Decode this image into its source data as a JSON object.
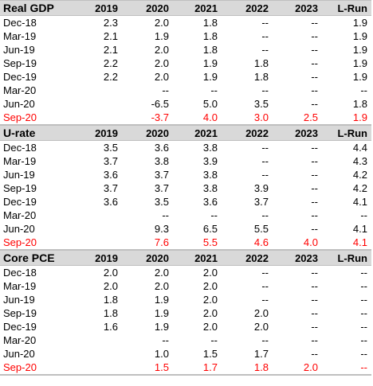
{
  "columns": [
    "2019",
    "2020",
    "2021",
    "2022",
    "2023",
    "L-Run"
  ],
  "sections": [
    {
      "title": "Real GDP",
      "rows": [
        {
          "label": "Dec-18",
          "values": [
            "2.3",
            "2.0",
            "1.8",
            "--",
            "--",
            "1.9"
          ]
        },
        {
          "label": "Mar-19",
          "values": [
            "2.1",
            "1.9",
            "1.8",
            "--",
            "--",
            "1.9"
          ]
        },
        {
          "label": "Jun-19",
          "values": [
            "2.1",
            "2.0",
            "1.8",
            "--",
            "--",
            "1.9"
          ]
        },
        {
          "label": "Sep-19",
          "values": [
            "2.2",
            "2.0",
            "1.9",
            "1.8",
            "--",
            "1.9"
          ]
        },
        {
          "label": "Dec-19",
          "values": [
            "2.2",
            "2.0",
            "1.9",
            "1.8",
            "--",
            "1.9"
          ]
        },
        {
          "label": "Mar-20",
          "values": [
            "",
            "--",
            "--",
            "--",
            "--",
            "--"
          ]
        },
        {
          "label": "Jun-20",
          "values": [
            "",
            "-6.5",
            "5.0",
            "3.5",
            "--",
            "1.8"
          ]
        },
        {
          "label": "Sep-20",
          "values": [
            "",
            "-3.7",
            "4.0",
            "3.0",
            "2.5",
            "1.9"
          ]
        }
      ]
    },
    {
      "title": "U-rate",
      "rows": [
        {
          "label": "Dec-18",
          "values": [
            "3.5",
            "3.6",
            "3.8",
            "--",
            "--",
            "4.4"
          ]
        },
        {
          "label": "Mar-19",
          "values": [
            "3.7",
            "3.8",
            "3.9",
            "--",
            "--",
            "4.3"
          ]
        },
        {
          "label": "Jun-19",
          "values": [
            "3.6",
            "3.7",
            "3.8",
            "--",
            "--",
            "4.2"
          ]
        },
        {
          "label": "Sep-19",
          "values": [
            "3.7",
            "3.7",
            "3.8",
            "3.9",
            "--",
            "4.2"
          ]
        },
        {
          "label": "Dec-19",
          "values": [
            "3.6",
            "3.5",
            "3.6",
            "3.7",
            "--",
            "4.1"
          ]
        },
        {
          "label": "Mar-20",
          "values": [
            "",
            "--",
            "--",
            "--",
            "--",
            "--"
          ]
        },
        {
          "label": "Jun-20",
          "values": [
            "",
            "9.3",
            "6.5",
            "5.5",
            "--",
            "4.1"
          ]
        },
        {
          "label": "Sep-20",
          "values": [
            "",
            "7.6",
            "5.5",
            "4.6",
            "4.0",
            "4.1"
          ]
        }
      ]
    },
    {
      "title": "Core PCE",
      "rows": [
        {
          "label": "Dec-18",
          "values": [
            "2.0",
            "2.0",
            "2.0",
            "--",
            "--",
            "--"
          ]
        },
        {
          "label": "Mar-19",
          "values": [
            "2.0",
            "2.0",
            "2.0",
            "--",
            "--",
            "--"
          ]
        },
        {
          "label": "Jun-19",
          "values": [
            "1.8",
            "1.9",
            "2.0",
            "--",
            "--",
            "--"
          ]
        },
        {
          "label": "Sep-19",
          "values": [
            "1.8",
            "1.9",
            "2.0",
            "2.0",
            "--",
            "--"
          ]
        },
        {
          "label": "Dec-19",
          "values": [
            "1.6",
            "1.9",
            "2.0",
            "2.0",
            "--",
            "--"
          ]
        },
        {
          "label": "Mar-20",
          "values": [
            "",
            "--",
            "--",
            "--",
            "--",
            "--"
          ]
        },
        {
          "label": "Jun-20",
          "values": [
            "",
            "1.0",
            "1.5",
            "1.7",
            "--",
            "--"
          ]
        },
        {
          "label": "Sep-20",
          "values": [
            "",
            "1.5",
            "1.7",
            "1.8",
            "2.0",
            "--"
          ]
        }
      ]
    }
  ],
  "colors": {
    "latest_row": "#ff0000",
    "header_bg": "#d9d9d9"
  }
}
